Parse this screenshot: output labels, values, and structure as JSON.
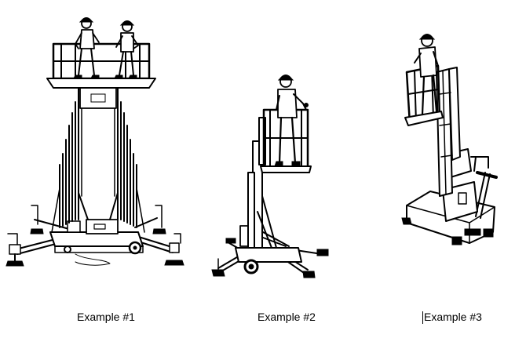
{
  "figures": [
    {
      "id": "example-1",
      "caption": "Example #1",
      "description_icon": "two-person-mast-lift-icon"
    },
    {
      "id": "example-2",
      "caption": "Example #2",
      "description_icon": "single-mast-personnel-lift-icon"
    },
    {
      "id": "example-3",
      "caption": "Example #3",
      "description_icon": "push-around-vertical-lift-icon"
    }
  ],
  "colors": {
    "ink": "#000000",
    "paper": "#ffffff"
  }
}
